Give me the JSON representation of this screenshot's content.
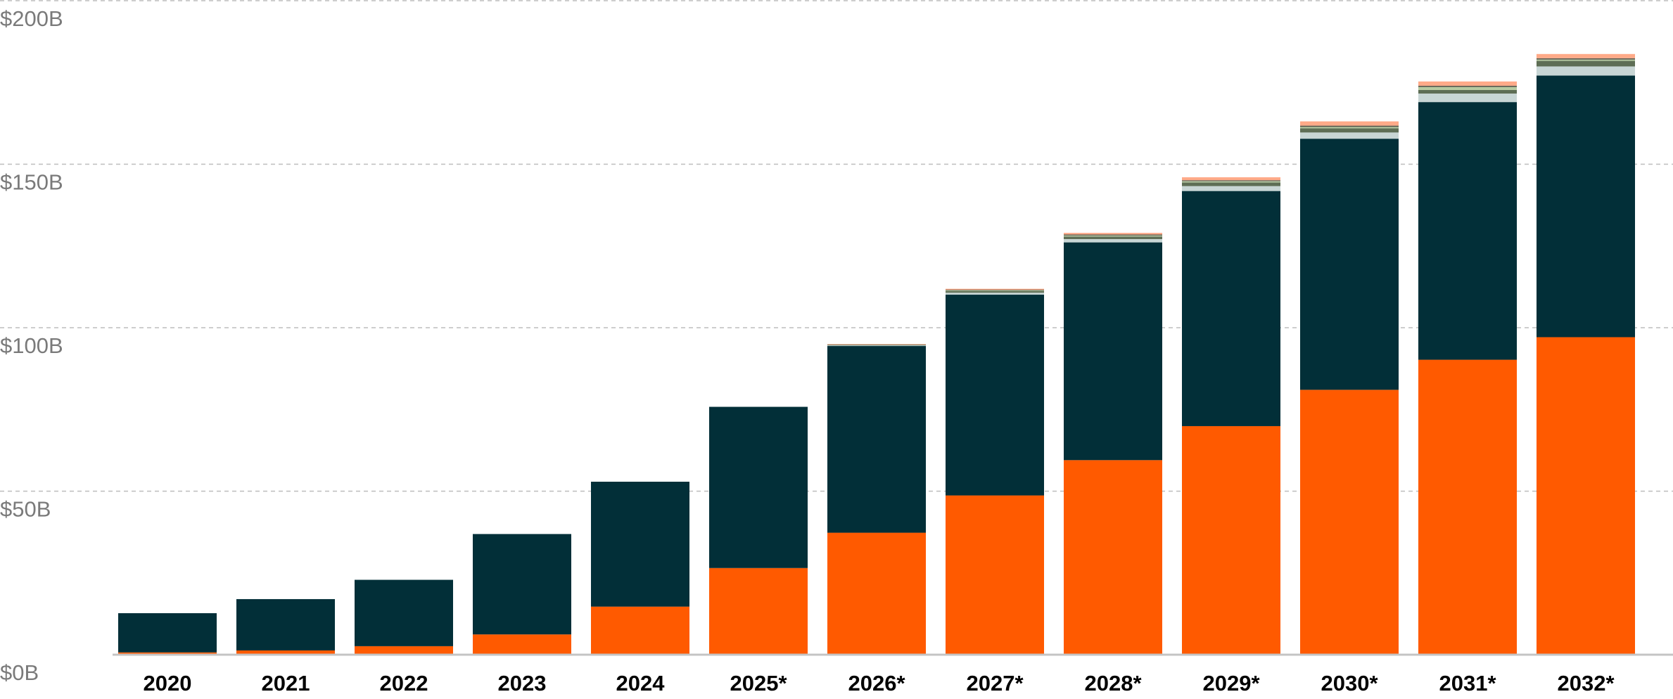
{
  "chart_data": {
    "type": "bar",
    "stacked": true,
    "title": "",
    "xlabel": "",
    "ylabel": "",
    "ylim": [
      0,
      200
    ],
    "grid": true,
    "legend": "none",
    "y_ticks": [
      0,
      50,
      100,
      150,
      200
    ],
    "y_tick_labels": [
      "$0B",
      "$50B",
      "$100B",
      "$150B",
      "$200B"
    ],
    "categories": [
      "2020",
      "2021",
      "2022",
      "2023",
      "2024",
      "2025*",
      "2026*",
      "2027*",
      "2028*",
      "2029*",
      "2030*",
      "2031*",
      "2032*"
    ],
    "series": [
      {
        "color": "#ff5a00",
        "values": [
          0.7,
          1.3,
          2.6,
          6.2,
          14.7,
          26.5,
          37.3,
          48.7,
          59.5,
          69.9,
          81.0,
          90.2,
          97.1
        ]
      },
      {
        "color": "#022f38",
        "values": [
          12.0,
          15.7,
          20.3,
          30.7,
          38.2,
          49.3,
          57.1,
          61.4,
          66.6,
          71.9,
          76.8,
          78.8,
          80.0
        ]
      },
      {
        "color": "#c8d6d5",
        "values": [
          0,
          0,
          0,
          0,
          0,
          0,
          0.2,
          0.6,
          1.0,
          1.5,
          1.9,
          2.6,
          2.8
        ]
      },
      {
        "color": "#5e6e55",
        "values": [
          0,
          0,
          0,
          0,
          0,
          0,
          0.2,
          0.5,
          0.8,
          1.1,
          1.3,
          1.1,
          1.7
        ]
      },
      {
        "color": "#b5c9a0",
        "values": [
          0,
          0,
          0,
          0,
          0,
          0,
          0.1,
          0.2,
          0.3,
          0.4,
          0.4,
          0.9,
          0.4
        ]
      },
      {
        "color": "#5b5a4c",
        "values": [
          0,
          0,
          0,
          0,
          0,
          0,
          0.05,
          0.2,
          0.3,
          0.3,
          0.4,
          0.4,
          0.4
        ]
      },
      {
        "color": "#ffaa88",
        "values": [
          0,
          0,
          0,
          0,
          0,
          0,
          0.05,
          0.3,
          0.5,
          0.9,
          1.3,
          1.3,
          1.3
        ]
      }
    ]
  }
}
